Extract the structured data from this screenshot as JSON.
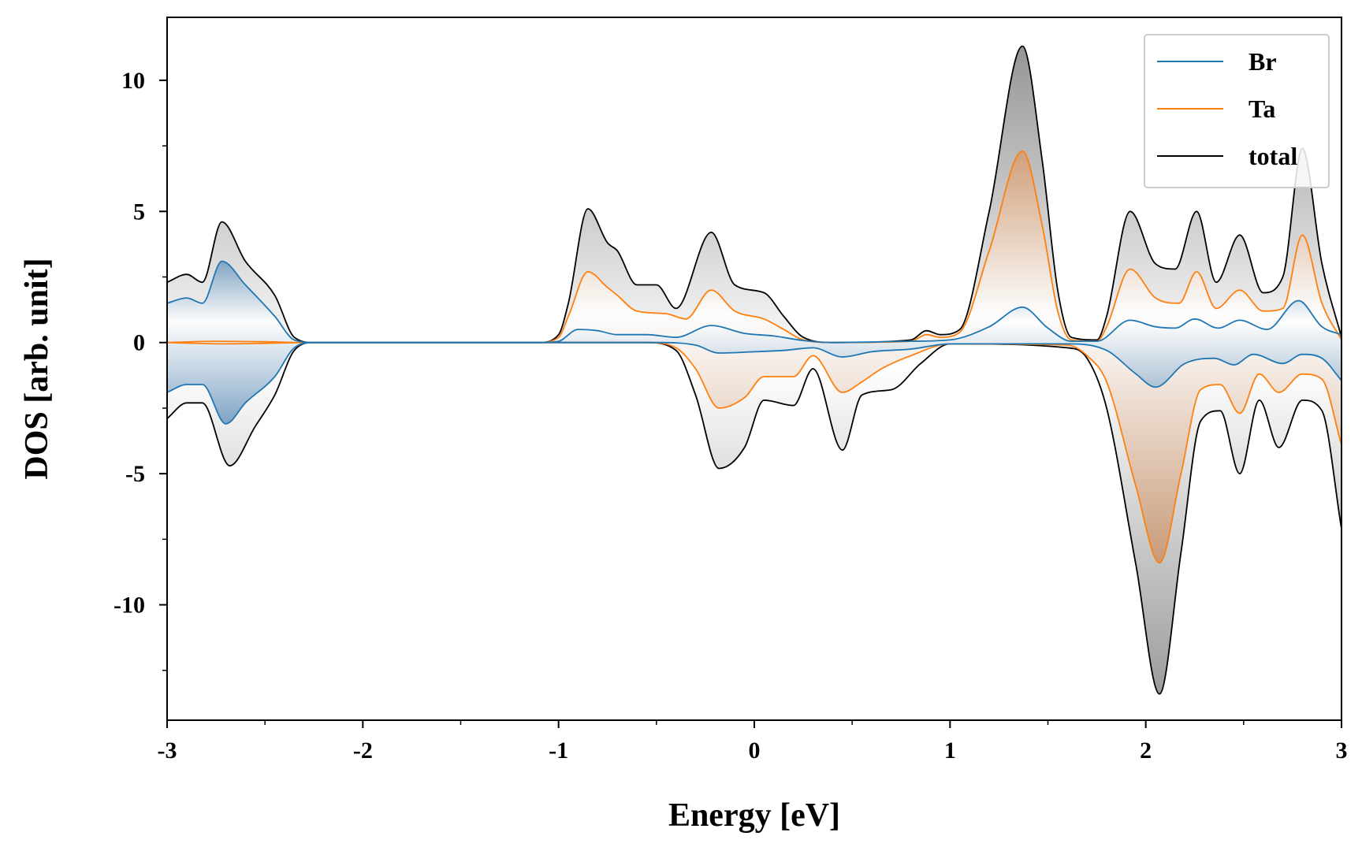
{
  "chart_data": {
    "type": "line",
    "title": "",
    "xlabel": "Energy [eV]",
    "ylabel": "DOS [arb. unit]",
    "xlim": [
      -3,
      3
    ],
    "ylim": [
      -14.4,
      12.4
    ],
    "x_ticks": [
      -3,
      -2,
      -1,
      0,
      1,
      2,
      3
    ],
    "x_tick_labels": [
      "-3",
      "-2",
      "-1",
      "0",
      "1",
      "2",
      "3"
    ],
    "y_ticks": [
      10,
      5,
      0,
      -5,
      -10
    ],
    "y_tick_labels": [
      "10",
      "5",
      "0",
      "-5",
      "-10"
    ],
    "grid": false,
    "legend_position": "top-right",
    "series": [
      {
        "name": "Br",
        "color": "#1f77b4",
        "up": [
          [
            -3,
            1.5
          ],
          [
            -2.9,
            1.7
          ],
          [
            -2.82,
            1.5
          ],
          [
            -2.72,
            3.1
          ],
          [
            -2.6,
            2.2
          ],
          [
            -2.45,
            1.0
          ],
          [
            -2.35,
            0.1
          ],
          [
            -2.25,
            0
          ],
          [
            -1.1,
            0
          ],
          [
            -1.0,
            0.05
          ],
          [
            -0.9,
            0.5
          ],
          [
            -0.8,
            0.45
          ],
          [
            -0.7,
            0.3
          ],
          [
            -0.55,
            0.3
          ],
          [
            -0.4,
            0.2
          ],
          [
            -0.22,
            0.65
          ],
          [
            -0.05,
            0.35
          ],
          [
            0.1,
            0.25
          ],
          [
            0.25,
            0.08
          ],
          [
            0.4,
            0.0
          ],
          [
            0.8,
            0.05
          ],
          [
            1.0,
            0.1
          ],
          [
            1.2,
            0.6
          ],
          [
            1.37,
            1.35
          ],
          [
            1.5,
            0.55
          ],
          [
            1.62,
            0.05
          ],
          [
            1.75,
            0.05
          ],
          [
            1.92,
            0.85
          ],
          [
            2.05,
            0.6
          ],
          [
            2.15,
            0.55
          ],
          [
            2.25,
            0.9
          ],
          [
            2.37,
            0.55
          ],
          [
            2.48,
            0.85
          ],
          [
            2.62,
            0.5
          ],
          [
            2.78,
            1.6
          ],
          [
            2.9,
            0.6
          ],
          [
            3,
            0.3
          ]
        ],
        "down": [
          [
            -3,
            -1.9
          ],
          [
            -2.9,
            -1.6
          ],
          [
            -2.82,
            -1.6
          ],
          [
            -2.7,
            -3.1
          ],
          [
            -2.6,
            -2.3
          ],
          [
            -2.45,
            -1.3
          ],
          [
            -2.35,
            -0.2
          ],
          [
            -2.25,
            0
          ],
          [
            -0.5,
            0
          ],
          [
            -0.3,
            -0.1
          ],
          [
            -0.18,
            -0.4
          ],
          [
            0,
            -0.35
          ],
          [
            0.15,
            -0.3
          ],
          [
            0.3,
            -0.2
          ],
          [
            0.45,
            -0.55
          ],
          [
            0.6,
            -0.35
          ],
          [
            0.8,
            -0.25
          ],
          [
            1.0,
            -0.05
          ],
          [
            1.6,
            -0.05
          ],
          [
            1.8,
            -0.3
          ],
          [
            1.95,
            -1.2
          ],
          [
            2.05,
            -1.7
          ],
          [
            2.2,
            -0.8
          ],
          [
            2.35,
            -0.6
          ],
          [
            2.45,
            -0.85
          ],
          [
            2.55,
            -0.45
          ],
          [
            2.7,
            -0.8
          ],
          [
            2.8,
            -0.45
          ],
          [
            2.9,
            -0.6
          ],
          [
            3,
            -1.45
          ]
        ]
      },
      {
        "name": "Ta",
        "color": "#ff7f0e",
        "up": [
          [
            -3,
            0
          ],
          [
            -2.75,
            0.05
          ],
          [
            -2.5,
            0.03
          ],
          [
            -2.3,
            0
          ],
          [
            -1.1,
            0
          ],
          [
            -1.0,
            0.2
          ],
          [
            -0.95,
            1.0
          ],
          [
            -0.85,
            2.7
          ],
          [
            -0.75,
            2.1
          ],
          [
            -0.7,
            1.8
          ],
          [
            -0.6,
            1.2
          ],
          [
            -0.45,
            1.1
          ],
          [
            -0.35,
            0.9
          ],
          [
            -0.22,
            2.0
          ],
          [
            -0.1,
            1.2
          ],
          [
            0.05,
            0.9
          ],
          [
            0.15,
            0.5
          ],
          [
            0.25,
            0.1
          ],
          [
            0.4,
            0.0
          ],
          [
            0.8,
            0.05
          ],
          [
            0.88,
            0.3
          ],
          [
            0.95,
            0.2
          ],
          [
            1.05,
            0.4
          ],
          [
            1.2,
            3.5
          ],
          [
            1.37,
            7.3
          ],
          [
            1.47,
            4.5
          ],
          [
            1.55,
            1.2
          ],
          [
            1.62,
            0.1
          ],
          [
            1.75,
            0.05
          ],
          [
            1.8,
            0.6
          ],
          [
            1.92,
            2.8
          ],
          [
            2.05,
            1.7
          ],
          [
            2.17,
            1.5
          ],
          [
            2.26,
            2.7
          ],
          [
            2.36,
            1.3
          ],
          [
            2.48,
            2.0
          ],
          [
            2.6,
            1.2
          ],
          [
            2.7,
            1.3
          ],
          [
            2.8,
            4.1
          ],
          [
            2.9,
            1.5
          ],
          [
            3,
            0.1
          ]
        ],
        "down": [
          [
            -3,
            0
          ],
          [
            -2.7,
            -0.05
          ],
          [
            -2.5,
            -0.03
          ],
          [
            -2.3,
            0
          ],
          [
            -0.55,
            0
          ],
          [
            -0.4,
            -0.2
          ],
          [
            -0.3,
            -1.0
          ],
          [
            -0.18,
            -2.5
          ],
          [
            -0.05,
            -2.1
          ],
          [
            0.05,
            -1.3
          ],
          [
            0.2,
            -1.3
          ],
          [
            0.3,
            -0.5
          ],
          [
            0.45,
            -1.9
          ],
          [
            0.55,
            -1.5
          ],
          [
            0.65,
            -1.0
          ],
          [
            0.8,
            -0.5
          ],
          [
            1.0,
            -0.05
          ],
          [
            1.6,
            -0.1
          ],
          [
            1.7,
            -0.5
          ],
          [
            1.8,
            -1.5
          ],
          [
            1.95,
            -5.5
          ],
          [
            2.07,
            -8.4
          ],
          [
            2.18,
            -5.0
          ],
          [
            2.28,
            -1.8
          ],
          [
            2.38,
            -1.6
          ],
          [
            2.48,
            -2.7
          ],
          [
            2.58,
            -1.2
          ],
          [
            2.68,
            -1.9
          ],
          [
            2.8,
            -1.2
          ],
          [
            2.9,
            -1.4
          ],
          [
            3,
            -3.9
          ]
        ]
      },
      {
        "name": "total",
        "color": "#000000",
        "up": [
          [
            -3,
            2.3
          ],
          [
            -2.9,
            2.6
          ],
          [
            -2.82,
            2.3
          ],
          [
            -2.72,
            4.6
          ],
          [
            -2.6,
            3.1
          ],
          [
            -2.45,
            1.8
          ],
          [
            -2.35,
            0.2
          ],
          [
            -2.25,
            0
          ],
          [
            -1.1,
            0
          ],
          [
            -1.0,
            0.3
          ],
          [
            -0.95,
            1.5
          ],
          [
            -0.85,
            5.1
          ],
          [
            -0.75,
            3.8
          ],
          [
            -0.7,
            3.5
          ],
          [
            -0.6,
            2.2
          ],
          [
            -0.5,
            2.2
          ],
          [
            -0.4,
            1.3
          ],
          [
            -0.22,
            4.2
          ],
          [
            -0.1,
            2.2
          ],
          [
            0.05,
            1.9
          ],
          [
            0.15,
            1.0
          ],
          [
            0.25,
            0.2
          ],
          [
            0.4,
            0.0
          ],
          [
            0.8,
            0.1
          ],
          [
            0.88,
            0.45
          ],
          [
            0.95,
            0.3
          ],
          [
            1.05,
            0.5
          ],
          [
            1.2,
            5.0
          ],
          [
            1.37,
            11.3
          ],
          [
            1.47,
            7.0
          ],
          [
            1.55,
            2.0
          ],
          [
            1.62,
            0.2
          ],
          [
            1.75,
            0.1
          ],
          [
            1.8,
            1.0
          ],
          [
            1.92,
            5.0
          ],
          [
            2.05,
            3.0
          ],
          [
            2.15,
            2.8
          ],
          [
            2.26,
            5.0
          ],
          [
            2.36,
            2.3
          ],
          [
            2.48,
            4.1
          ],
          [
            2.6,
            1.9
          ],
          [
            2.7,
            2.5
          ],
          [
            2.8,
            7.4
          ],
          [
            2.9,
            3.0
          ],
          [
            3,
            0.2
          ]
        ],
        "down": [
          [
            -3,
            -2.9
          ],
          [
            -2.9,
            -2.3
          ],
          [
            -2.82,
            -2.3
          ],
          [
            -2.68,
            -4.7
          ],
          [
            -2.55,
            -3.2
          ],
          [
            -2.45,
            -2.0
          ],
          [
            -2.35,
            -0.3
          ],
          [
            -2.25,
            0
          ],
          [
            -0.55,
            0
          ],
          [
            -0.4,
            -0.3
          ],
          [
            -0.3,
            -2.0
          ],
          [
            -0.18,
            -4.8
          ],
          [
            -0.05,
            -4.0
          ],
          [
            0.05,
            -2.2
          ],
          [
            0.2,
            -2.4
          ],
          [
            0.3,
            -1.0
          ],
          [
            0.45,
            -4.1
          ],
          [
            0.55,
            -2.0
          ],
          [
            0.7,
            -1.8
          ],
          [
            0.85,
            -0.8
          ],
          [
            1.0,
            -0.05
          ],
          [
            1.6,
            -0.2
          ],
          [
            1.7,
            -0.6
          ],
          [
            1.8,
            -2.5
          ],
          [
            1.95,
            -8.5
          ],
          [
            2.07,
            -13.4
          ],
          [
            2.18,
            -8.0
          ],
          [
            2.28,
            -3.0
          ],
          [
            2.38,
            -2.6
          ],
          [
            2.48,
            -5.0
          ],
          [
            2.58,
            -2.2
          ],
          [
            2.68,
            -4.0
          ],
          [
            2.8,
            -2.2
          ],
          [
            2.9,
            -2.6
          ],
          [
            3,
            -7.1
          ]
        ]
      }
    ]
  }
}
